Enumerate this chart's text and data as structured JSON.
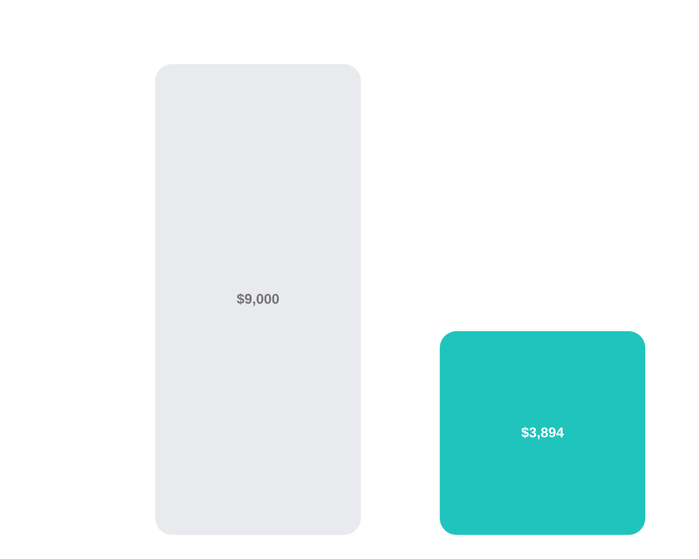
{
  "chart_data": {
    "type": "bar",
    "categories": [
      null,
      null
    ],
    "values": [
      9000,
      3894
    ],
    "colors": [
      "#e9eaed",
      "#1fc4bd"
    ],
    "value_labels": [
      "$9,000",
      "$3,894"
    ]
  }
}
